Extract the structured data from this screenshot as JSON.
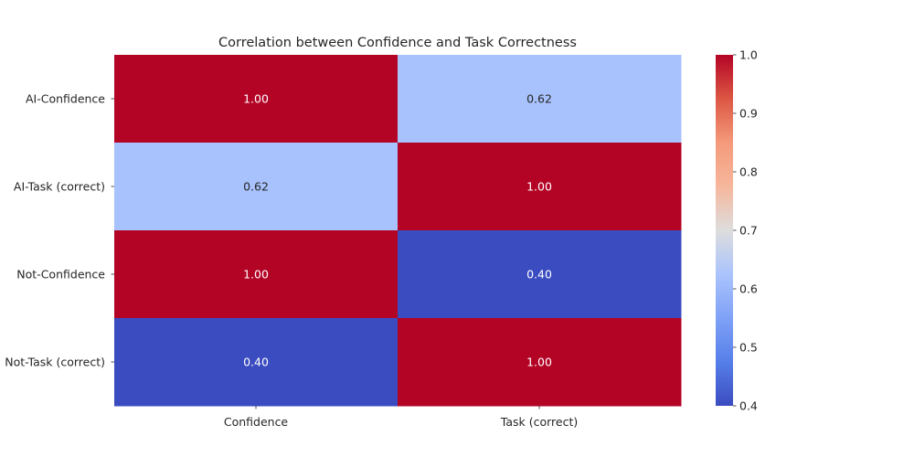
{
  "chart_data": {
    "type": "heatmap",
    "title": "Correlation between Confidence and Task Correctness",
    "xlabel": "",
    "ylabel": "",
    "x_categories": [
      "Confidence",
      "Task (correct)"
    ],
    "y_categories": [
      "AI-Confidence",
      "AI-Task (correct)",
      "Not-Confidence",
      "Not-Task (correct)"
    ],
    "values": [
      [
        1.0,
        0.62
      ],
      [
        0.62,
        1.0
      ],
      [
        1.0,
        0.4
      ],
      [
        0.4,
        1.0
      ]
    ],
    "annotation_format": "0.00",
    "colormap": "coolwarm",
    "colorbar": {
      "min": 0.4,
      "max": 1.0,
      "ticks": [
        0.4,
        0.5,
        0.6,
        0.7,
        0.8,
        0.9,
        1.0
      ],
      "tick_labels": [
        "0.4",
        "0.5",
        "0.6",
        "0.7",
        "0.8",
        "0.9",
        "1.0"
      ]
    },
    "grid": false,
    "legend": "colorbar-right"
  }
}
